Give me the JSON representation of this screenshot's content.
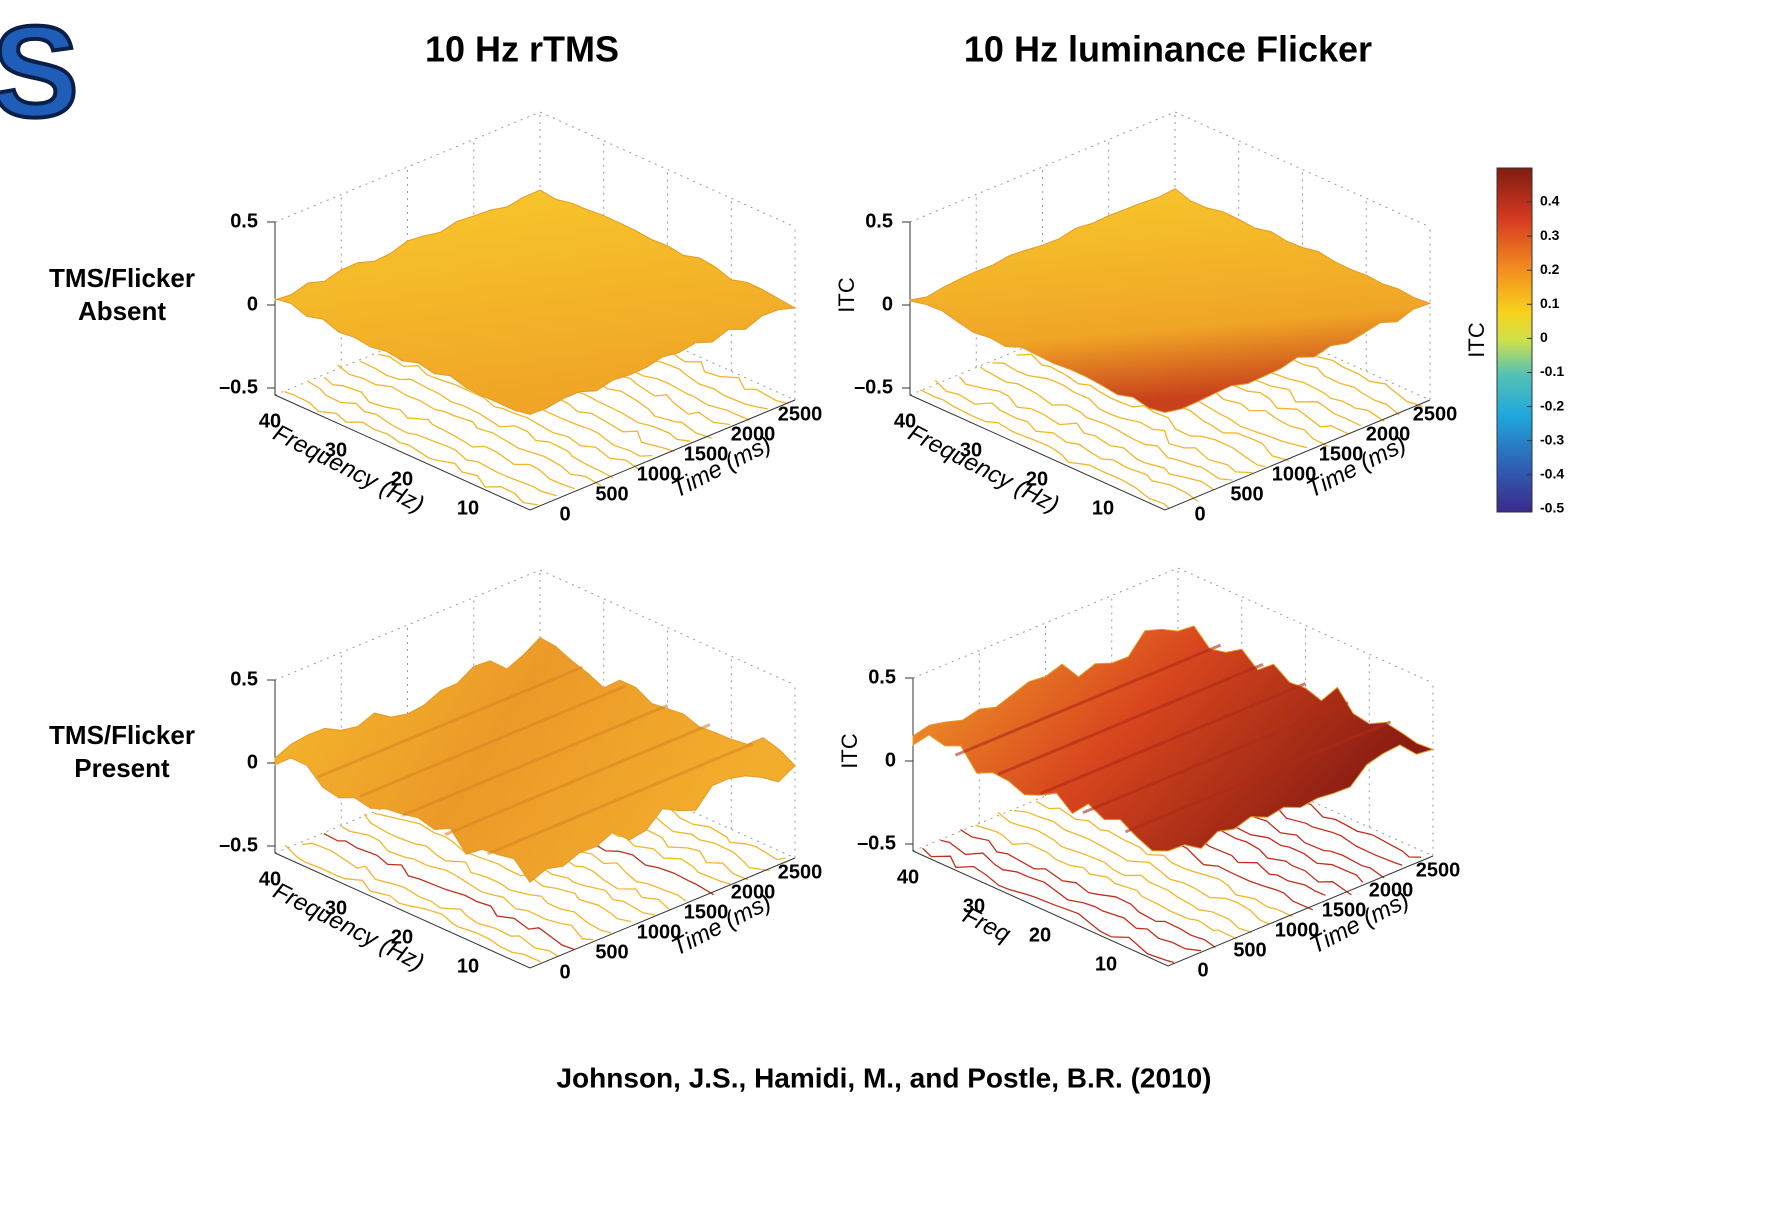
{
  "logo_fragment": "S",
  "column_titles": [
    "10 Hz rTMS",
    "10 Hz luminance Flicker"
  ],
  "row_labels": [
    [
      "TMS/Flicker",
      "Absent"
    ],
    [
      "TMS/Flicker",
      "Present"
    ]
  ],
  "panels": [
    {
      "z_ticks": [
        "0.5",
        "0",
        "–0.5"
      ],
      "freq_ticks": [
        "40",
        "30",
        "20",
        "10"
      ],
      "time_ticks": [
        "0",
        "500",
        "1000",
        "1500",
        "2000",
        "2500"
      ],
      "freq_label": "Frequency (Hz)",
      "time_label": "Time (ms)"
    },
    {
      "z_ticks": [
        "0.5",
        "0",
        "–0.5"
      ],
      "z_label": "ITC",
      "freq_ticks": [
        "40",
        "30",
        "20",
        "10"
      ],
      "time_ticks": [
        "0",
        "500",
        "1000",
        "1500",
        "2000",
        "2500"
      ],
      "freq_label": "Frequency (Hz)",
      "time_label": "Time (ms)"
    },
    {
      "z_ticks": [
        "0.5",
        "0",
        "–0.5"
      ],
      "freq_ticks": [
        "40",
        "30",
        "20",
        "10"
      ],
      "time_ticks": [
        "0",
        "500",
        "1000",
        "1500",
        "2000",
        "2500"
      ],
      "freq_label": "Frequency (Hz)",
      "time_label": "Time (ms)"
    },
    {
      "z_ticks": [
        "0.5",
        "0",
        "–0.5"
      ],
      "z_label": "ITC",
      "freq_ticks": [
        "40",
        "30",
        "20",
        "10"
      ],
      "time_ticks": [
        "0",
        "500",
        "1000",
        "1500",
        "2000",
        "2500"
      ],
      "freq_label": "Freq",
      "time_label": "Time (ms)"
    }
  ],
  "colorbar": {
    "label": "ITC",
    "ticks": [
      "0.4",
      "0.3",
      "0.2",
      "0.1",
      "0",
      "-0.1",
      "-0.2",
      "-0.3",
      "-0.4",
      "-0.5"
    ]
  },
  "citation": "Johnson, J.S., Hamidi, M., and Postle, B.R. (2010)"
}
